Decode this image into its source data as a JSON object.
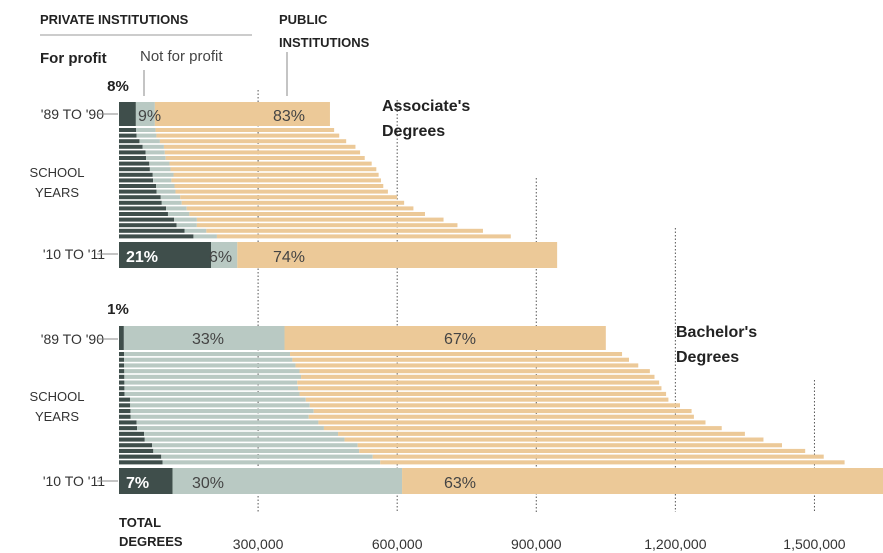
{
  "header": {
    "private_institutions": "PRIVATE INSTITUTIONS",
    "public_institutions_line1": "PUBLIC",
    "public_institutions_line2": "INSTITUTIONS",
    "for_profit": "For profit",
    "not_for_profit": "Not for profit"
  },
  "colors": {
    "for_profit": "#3f4e4b",
    "not_for_profit": "#b9c9c3",
    "public": "#ecc998",
    "gridline": "#555555"
  },
  "chart_data": [
    {
      "type": "bar",
      "stacked": true,
      "orientation": "horizontal",
      "title_line1": "Associate's",
      "title_line2": "Degrees",
      "first_row_label": "'89 TO '90",
      "last_row_label": "'10 TO '11",
      "middle_label_line1": "SCHOOL",
      "middle_label_line2": "YEARS",
      "series_names": [
        "For profit",
        "Not for profit",
        "Public institutions"
      ],
      "totals": [
        455000,
        464000,
        475000,
        490000,
        510000,
        520000,
        530000,
        545000,
        555000,
        560000,
        565000,
        570000,
        580000,
        600000,
        615000,
        635000,
        660000,
        700000,
        730000,
        785000,
        845000,
        945000
      ],
      "for_profit_share": [
        0.08,
        0.08,
        0.08,
        0.09,
        0.1,
        0.11,
        0.11,
        0.12,
        0.12,
        0.13,
        0.13,
        0.14,
        0.14,
        0.15,
        0.15,
        0.16,
        0.16,
        0.17,
        0.17,
        0.18,
        0.19,
        0.21
      ],
      "not_for_profit_share": [
        0.09,
        0.09,
        0.09,
        0.09,
        0.09,
        0.08,
        0.08,
        0.08,
        0.08,
        0.08,
        0.07,
        0.07,
        0.07,
        0.07,
        0.07,
        0.07,
        0.07,
        0.07,
        0.06,
        0.06,
        0.06,
        0.06
      ],
      "first_row_labels": {
        "for_profit": "8%",
        "not_for_profit": "9%",
        "public": "83%"
      },
      "last_row_labels": {
        "for_profit": "21%",
        "not_for_profit": "6%",
        "public": "74%"
      },
      "xlim": [
        0,
        1650000
      ]
    },
    {
      "type": "bar",
      "stacked": true,
      "orientation": "horizontal",
      "title_line1": "Bachelor's",
      "title_line2": "Degrees",
      "first_row_label": "'89 TO '90",
      "last_row_label": "'10 TO '11",
      "middle_label_line1": "SCHOOL",
      "middle_label_line2": "YEARS",
      "series_names": [
        "For profit",
        "Not for profit",
        "Public institutions"
      ],
      "totals": [
        1050000,
        1085000,
        1100000,
        1120000,
        1145000,
        1155000,
        1165000,
        1170000,
        1180000,
        1185000,
        1210000,
        1235000,
        1240000,
        1265000,
        1300000,
        1350000,
        1390000,
        1430000,
        1480000,
        1520000,
        1565000,
        1650000
      ],
      "for_profit_share": [
        0.01,
        0.01,
        0.01,
        0.01,
        0.01,
        0.01,
        0.01,
        0.01,
        0.01,
        0.02,
        0.02,
        0.02,
        0.02,
        0.03,
        0.03,
        0.04,
        0.04,
        0.05,
        0.05,
        0.06,
        0.06,
        0.07
      ],
      "not_for_profit_share": [
        0.33,
        0.33,
        0.33,
        0.33,
        0.33,
        0.33,
        0.32,
        0.32,
        0.32,
        0.32,
        0.32,
        0.32,
        0.31,
        0.31,
        0.31,
        0.31,
        0.31,
        0.31,
        0.3,
        0.3,
        0.3,
        0.3
      ],
      "first_row_labels": {
        "for_profit": "1%",
        "not_for_profit": "33%",
        "public": "67%"
      },
      "last_row_labels": {
        "for_profit": "7%",
        "not_for_profit": "30%",
        "public": "63%"
      },
      "xlim": [
        0,
        1650000
      ]
    }
  ],
  "x_axis": {
    "label_line1": "TOTAL",
    "label_line2": "DEGREES",
    "ticks": [
      300000,
      600000,
      900000,
      1200000,
      1500000
    ],
    "tick_labels": [
      "300,000",
      "600,000",
      "900,000",
      "1,200,000",
      "1,500,000"
    ]
  }
}
